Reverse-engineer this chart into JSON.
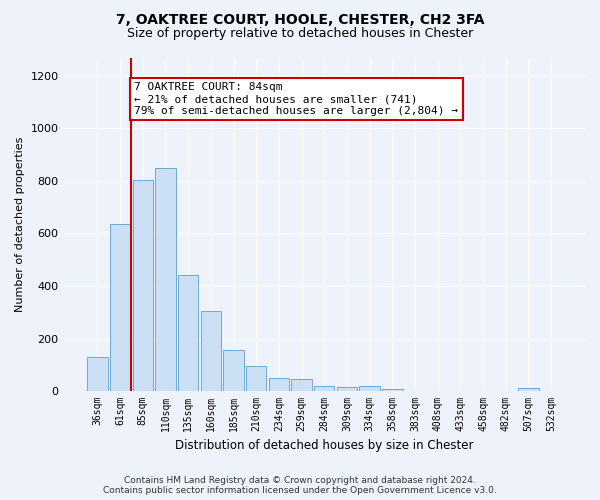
{
  "title1": "7, OAKTREE COURT, HOOLE, CHESTER, CH2 3FA",
  "title2": "Size of property relative to detached houses in Chester",
  "xlabel": "Distribution of detached houses by size in Chester",
  "ylabel": "Number of detached properties",
  "categories": [
    "36sqm",
    "61sqm",
    "85sqm",
    "110sqm",
    "135sqm",
    "160sqm",
    "185sqm",
    "210sqm",
    "234sqm",
    "259sqm",
    "284sqm",
    "309sqm",
    "334sqm",
    "358sqm",
    "383sqm",
    "408sqm",
    "433sqm",
    "458sqm",
    "482sqm",
    "507sqm",
    "532sqm"
  ],
  "values": [
    130,
    635,
    805,
    850,
    440,
    305,
    158,
    95,
    50,
    45,
    20,
    15,
    18,
    8,
    0,
    0,
    0,
    0,
    0,
    10,
    0
  ],
  "bar_color": "#cce0f5",
  "bar_edge_color": "#6aaad4",
  "vline_color": "#cc0000",
  "annotation_text": "7 OAKTREE COURT: 84sqm\n← 21% of detached houses are smaller (741)\n79% of semi-detached houses are larger (2,804) →",
  "annotation_box_facecolor": "#ffffff",
  "annotation_box_edgecolor": "#cc0000",
  "ylim": [
    0,
    1270
  ],
  "yticks": [
    0,
    200,
    400,
    600,
    800,
    1000,
    1200
  ],
  "footer_line1": "Contains HM Land Registry data © Crown copyright and database right 2024.",
  "footer_line2": "Contains public sector information licensed under the Open Government Licence v3.0.",
  "bg_color": "#edf2fb",
  "plot_bg_color": "#edf2fb",
  "title1_fontsize": 10,
  "title2_fontsize": 9
}
